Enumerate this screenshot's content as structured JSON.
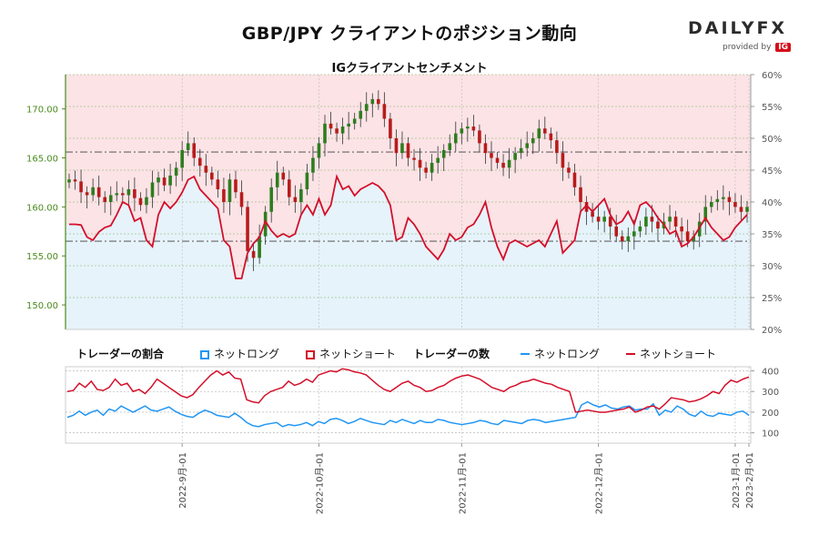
{
  "title": "GBP/JPY クライアントのポジション動向",
  "subtitle": "IGクライアントセンチメント",
  "logo": {
    "brand_left": "DAILY",
    "brand_right": "FX",
    "provided_by": "provided by",
    "ig": "IG"
  },
  "colors": {
    "long": "#2196f3",
    "short": "#d40f2a",
    "long_bg": "#e6f3fb",
    "short_bg": "#fbe3e6",
    "candle_up": "#2e7d1e",
    "candle_down": "#b71c1c",
    "price_axis": "#4a8a1c"
  },
  "legend": {
    "ratio_title": "トレーダーの割合",
    "ratio_long": "ネットロング",
    "ratio_short": "ネットショート",
    "count_title": "トレーダーの数",
    "count_long": "ネットロング",
    "count_short": "ネットショート"
  },
  "chart_data": [
    {
      "type": "candlestick",
      "title": "GBP/JPY",
      "y_price_ticks": [
        "150.00",
        "155.00",
        "160.00",
        "165.00",
        "170.00"
      ],
      "y_price_range": [
        147.5,
        173.5
      ],
      "y_pct_ticks": [
        "20%",
        "25%",
        "30%",
        "35%",
        "40%",
        "45%",
        "50%",
        "55%",
        "60%"
      ],
      "y_pct_range": [
        20,
        60
      ],
      "x_ticks": [
        "2022-9月-01",
        "2022-10月-01",
        "2022-11月-01",
        "2022-12月-01",
        "2023-1月-01",
        "2023-2月-01"
      ],
      "reference_lines": {
        "price": [
          165.6,
          156.5
        ]
      },
      "close": [
        162.8,
        162.6,
        161.5,
        161.2,
        162.0,
        161.0,
        160.5,
        161.2,
        161.4,
        161.2,
        161.8,
        160.9,
        160.2,
        161.0,
        162.5,
        163.0,
        162.2,
        163.2,
        164.0,
        165.8,
        166.5,
        165.0,
        164.2,
        163.5,
        162.8,
        161.8,
        160.5,
        162.8,
        161.5,
        160.0,
        155.5,
        154.8,
        157.0,
        159.5,
        162.0,
        163.5,
        162.8,
        161.0,
        160.5,
        161.8,
        163.5,
        165.0,
        166.5,
        168.5,
        168.0,
        167.5,
        168.2,
        168.5,
        169.0,
        169.8,
        170.5,
        171.0,
        170.5,
        169.0,
        167.0,
        165.5,
        166.5,
        165.0,
        164.8,
        164.0,
        163.5,
        164.5,
        165.0,
        165.8,
        166.5,
        167.5,
        168.0,
        168.2,
        167.8,
        166.5,
        165.5,
        165.0,
        164.5,
        164.0,
        164.8,
        165.5,
        166.0,
        166.5,
        167.0,
        168.0,
        167.5,
        166.8,
        165.5,
        164.0,
        163.5,
        162.0,
        160.5,
        159.5,
        159.0,
        158.5,
        159.0,
        158.0,
        157.0,
        156.5,
        157.0,
        157.5,
        158.0,
        159.0,
        158.5,
        157.8,
        158.5,
        159.0,
        158.0,
        157.5,
        156.5,
        157.0,
        158.5,
        160.0,
        160.5,
        160.8,
        161.0,
        160.5,
        160.0,
        159.5,
        160.0
      ],
      "long_pct": [
        36.5,
        36.5,
        36.4,
        34.5,
        34.0,
        35.3,
        36.0,
        36.3,
        38.0,
        40.0,
        39.5,
        37.0,
        37.5,
        34.0,
        33.0,
        38.0,
        40.0,
        39.0,
        40.0,
        41.5,
        43.5,
        44.0,
        42.0,
        41.0,
        40.0,
        39.0,
        34.0,
        33.0,
        28.0,
        28.0,
        32.0,
        33.5,
        34.5,
        37.0,
        35.5,
        34.5,
        35.0,
        34.5,
        35.0,
        38.0,
        39.5,
        38.0,
        40.5,
        38.0,
        39.5,
        44.0,
        42.0,
        42.5,
        41.0,
        42.0,
        42.5,
        43.0,
        42.5,
        41.5,
        39.5,
        34.0,
        34.5,
        37.5,
        36.5,
        35.0,
        33.0,
        32.0,
        31.0,
        32.5,
        35.0,
        34.0,
        34.5,
        36.0,
        36.5,
        38.0,
        40.0,
        36.0,
        33.0,
        31.0,
        33.5,
        34.0,
        33.5,
        33.0,
        33.5,
        34.0,
        33.0,
        35.0,
        37.0,
        32.0,
        33.0,
        34.0,
        38.5,
        39.5,
        38.5,
        39.5,
        40.5,
        38.0,
        36.5,
        37.0,
        38.5,
        36.5,
        39.5,
        40.0,
        39.0,
        37.5,
        36.5,
        35.0,
        35.5,
        33.0,
        33.5,
        34.5,
        36.0,
        37.5,
        36.0,
        35.0,
        34.0,
        34.5,
        36.0,
        37.0,
        38.0
      ]
    },
    {
      "type": "line",
      "title": "トレーダーの数",
      "y_ticks": [
        "100",
        "200",
        "300",
        "400"
      ],
      "y_range": [
        50,
        420
      ],
      "series": [
        {
          "name": "ネットロング",
          "values": [
            175,
            185,
            205,
            185,
            200,
            210,
            185,
            215,
            205,
            230,
            215,
            200,
            215,
            230,
            210,
            205,
            215,
            225,
            205,
            190,
            180,
            175,
            195,
            210,
            200,
            185,
            180,
            175,
            195,
            175,
            150,
            135,
            130,
            140,
            145,
            150,
            130,
            140,
            135,
            140,
            150,
            135,
            155,
            145,
            165,
            170,
            160,
            145,
            155,
            170,
            160,
            150,
            145,
            140,
            160,
            150,
            165,
            155,
            145,
            160,
            150,
            150,
            165,
            160,
            150,
            145,
            140,
            145,
            150,
            160,
            155,
            145,
            140,
            160,
            155,
            150,
            145,
            160,
            165,
            160,
            150,
            155,
            160,
            165,
            170,
            175,
            235,
            250,
            235,
            225,
            235,
            220,
            215,
            225,
            230,
            210,
            215,
            215,
            240,
            185,
            210,
            200,
            230,
            215,
            190,
            180,
            205,
            185,
            180,
            195,
            190,
            185,
            200,
            205,
            185
          ]
        },
        {
          "name": "ネットショート",
          "values": [
            300,
            305,
            340,
            320,
            350,
            310,
            305,
            320,
            360,
            330,
            340,
            300,
            310,
            290,
            320,
            360,
            340,
            320,
            300,
            280,
            270,
            285,
            320,
            350,
            380,
            400,
            380,
            395,
            365,
            360,
            260,
            250,
            245,
            280,
            300,
            310,
            320,
            350,
            330,
            340,
            360,
            345,
            380,
            390,
            400,
            395,
            410,
            405,
            395,
            390,
            380,
            355,
            330,
            310,
            300,
            320,
            340,
            350,
            330,
            320,
            300,
            305,
            320,
            330,
            350,
            365,
            375,
            380,
            370,
            360,
            340,
            320,
            310,
            300,
            320,
            330,
            345,
            350,
            360,
            350,
            340,
            335,
            320,
            310,
            300,
            200,
            205,
            210,
            205,
            200,
            200,
            205,
            210,
            215,
            225,
            200,
            210,
            225,
            230,
            215,
            240,
            270,
            265,
            260,
            250,
            255,
            265,
            280,
            300,
            290,
            330,
            355,
            345,
            360,
            370
          ]
        }
      ]
    }
  ]
}
